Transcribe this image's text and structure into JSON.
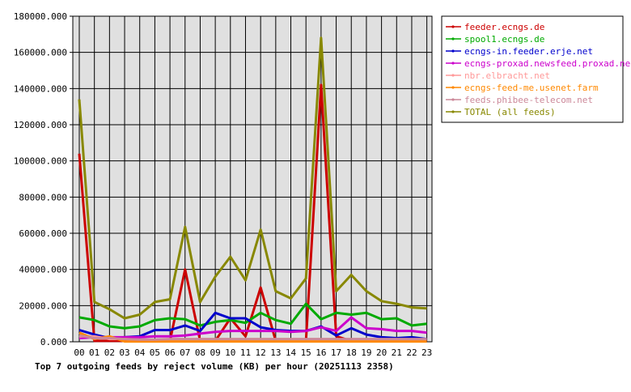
{
  "chart_data": {
    "type": "line",
    "title": "Top 7 outgoing feeds by reject volume (KB) per hour (20251113 2358)",
    "categories": [
      "00",
      "01",
      "02",
      "03",
      "04",
      "05",
      "06",
      "07",
      "08",
      "09",
      "10",
      "11",
      "12",
      "13",
      "14",
      "15",
      "16",
      "17",
      "18",
      "19",
      "20",
      "21",
      "22",
      "23"
    ],
    "ylim": [
      0,
      180000
    ],
    "yticks": [
      "0.000",
      "20000.000",
      "40000.000",
      "60000.000",
      "80000.000",
      "100000.000",
      "120000.000",
      "140000.000",
      "160000.000",
      "180000.000"
    ],
    "grid": true,
    "legend_placement": "right",
    "series": [
      {
        "name": "feeder.ecngs.de",
        "color": "#cc0000",
        "values": [
          104000,
          500,
          500,
          500,
          500,
          500,
          500,
          40000,
          500,
          500,
          13000,
          3000,
          30000,
          500,
          500,
          500,
          142000,
          3000,
          500,
          500,
          500,
          500,
          500,
          500
        ]
      },
      {
        "name": "spool1.ecngs.de",
        "color": "#00aa00",
        "values": [
          13500,
          12000,
          8500,
          7500,
          8500,
          12000,
          13000,
          12500,
          9000,
          11000,
          12000,
          10500,
          16000,
          12000,
          10000,
          21000,
          12500,
          16000,
          15000,
          16000,
          12500,
          13000,
          9000,
          10000
        ]
      },
      {
        "name": "ecngs-in.feeder.erje.net",
        "color": "#0000cc",
        "values": [
          6500,
          4000,
          2000,
          2500,
          3000,
          6500,
          6500,
          9000,
          6000,
          16000,
          13000,
          13000,
          8000,
          6500,
          6000,
          6000,
          8500,
          3500,
          7500,
          4000,
          2500,
          2000,
          2500,
          1500
        ]
      },
      {
        "name": "ecngs-proxad.newsfeed.proxad.net",
        "color": "#cc00cc",
        "values": [
          2000,
          2500,
          2500,
          2500,
          2500,
          3000,
          3000,
          3500,
          4500,
          5500,
          6000,
          6000,
          6000,
          6000,
          5500,
          6000,
          8000,
          6000,
          13500,
          7500,
          7000,
          6000,
          6000,
          5000
        ]
      },
      {
        "name": "nbr.elbracht.net",
        "color": "#ff9999",
        "values": [
          3000,
          3000,
          1500,
          1500,
          1000,
          1000,
          1000,
          1000,
          1000,
          1000,
          1000,
          1000,
          1000,
          1000,
          1000,
          1000,
          1000,
          1000,
          1000,
          1000,
          1000,
          1000,
          1000,
          1000
        ]
      },
      {
        "name": "ecngs-feed-me.usenet.farm",
        "color": "#ff8800",
        "values": [
          5000,
          1500,
          3000,
          200,
          200,
          200,
          200,
          200,
          200,
          200,
          200,
          200,
          200,
          200,
          200,
          200,
          200,
          200,
          200,
          200,
          200,
          200,
          200,
          200
        ]
      },
      {
        "name": "feeds.phibee-telecom.net",
        "color": "#cc8899",
        "values": [
          3500,
          2000,
          2000,
          1500,
          1200,
          1200,
          1500,
          1500,
          1500,
          1500,
          1500,
          1500,
          1500,
          1500,
          1500,
          1500,
          1500,
          1500,
          1500,
          1500,
          1500,
          1500,
          1500,
          1500
        ]
      },
      {
        "name": "TOTAL (all feeds)",
        "color": "#888800",
        "values": [
          134000,
          22000,
          18000,
          13000,
          15000,
          22000,
          23500,
          63500,
          22000,
          36000,
          47000,
          34000,
          62000,
          28000,
          24000,
          35000,
          168000,
          28000,
          37000,
          28000,
          22500,
          21000,
          19000,
          18500
        ]
      }
    ]
  }
}
